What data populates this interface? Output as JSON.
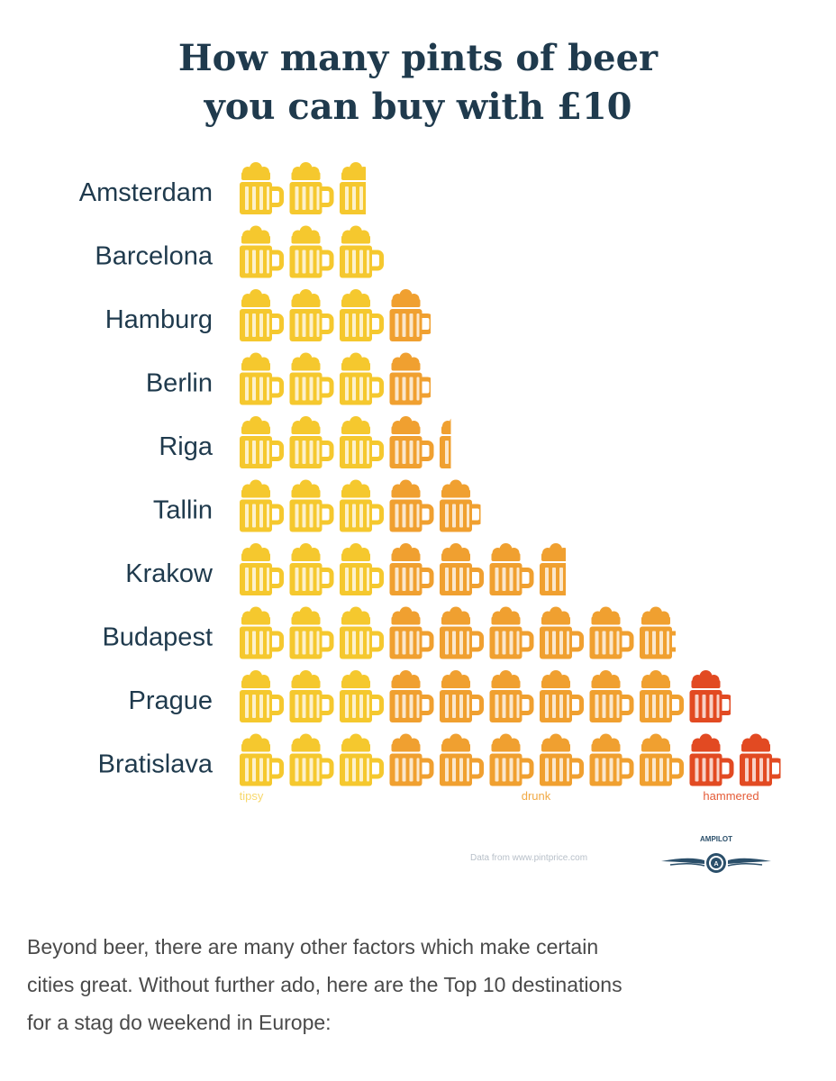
{
  "title": {
    "line1": "How many pints of beer",
    "line2": "you can buy with £10"
  },
  "chart_data": {
    "type": "pictograph",
    "unit": "pints",
    "categories": [
      "Amsterdam",
      "Barcelona",
      "Hamburg",
      "Berlin",
      "Riga",
      "Tallin",
      "Krakow",
      "Budapest",
      "Prague",
      "Bratislava"
    ],
    "values": [
      2.6,
      3.0,
      3.9,
      3.9,
      4.3,
      4.9,
      6.6,
      8.8,
      9.9,
      10.9
    ],
    "scale_labels": [
      {
        "text": "tipsy",
        "from_pints": 0,
        "to_pints": 3,
        "color": "#f5c82e"
      },
      {
        "text": "drunk",
        "from_pints": 3,
        "to_pints": 9,
        "color": "#f0a030"
      },
      {
        "text": "hammered",
        "from_pints": 9,
        "to_pints": 11,
        "color": "#e24a22"
      }
    ],
    "source": "Data from www.pintprice.com"
  },
  "brand": {
    "name": "AMPILOT",
    "icon": "winged-logo-icon",
    "color": "#2b4f6a"
  },
  "body_text": {
    "line1": "Beyond beer, there are many other factors which make certain",
    "line2": "cities great. Without further ado, here are the Top 10 destinations",
    "line3": "for a stag do weekend in Europe:"
  }
}
